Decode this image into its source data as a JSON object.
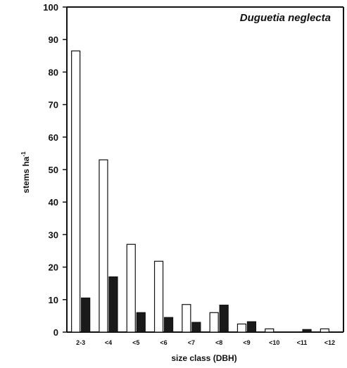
{
  "chart_data": {
    "type": "bar",
    "title": "Duguetia neglecta",
    "xlabel": "size class (DBH)",
    "ylabel": "stems ha-1",
    "ylabel_parts": {
      "main": "stems ha",
      "sup": "-1"
    },
    "ylim": [
      0,
      100
    ],
    "yticks": [
      "0",
      "10",
      "20",
      "30",
      "40",
      "50",
      "60",
      "70",
      "80",
      "90",
      "100"
    ],
    "categories": [
      "2-3",
      "<4",
      "<5",
      "<6",
      "<7",
      "<8",
      "<9",
      "<10",
      "<11",
      "<12"
    ],
    "series": [
      {
        "values": [
          86.5,
          53,
          27,
          21.8,
          8.5,
          6,
          2.5,
          1,
          0,
          1
        ],
        "color": "#ffffff"
      },
      {
        "values": [
          10.5,
          17,
          6,
          4.5,
          3,
          8.3,
          3.2,
          0,
          0.8,
          0
        ],
        "color": "#1a1a1a"
      }
    ],
    "grid": false,
    "legend": "none"
  }
}
